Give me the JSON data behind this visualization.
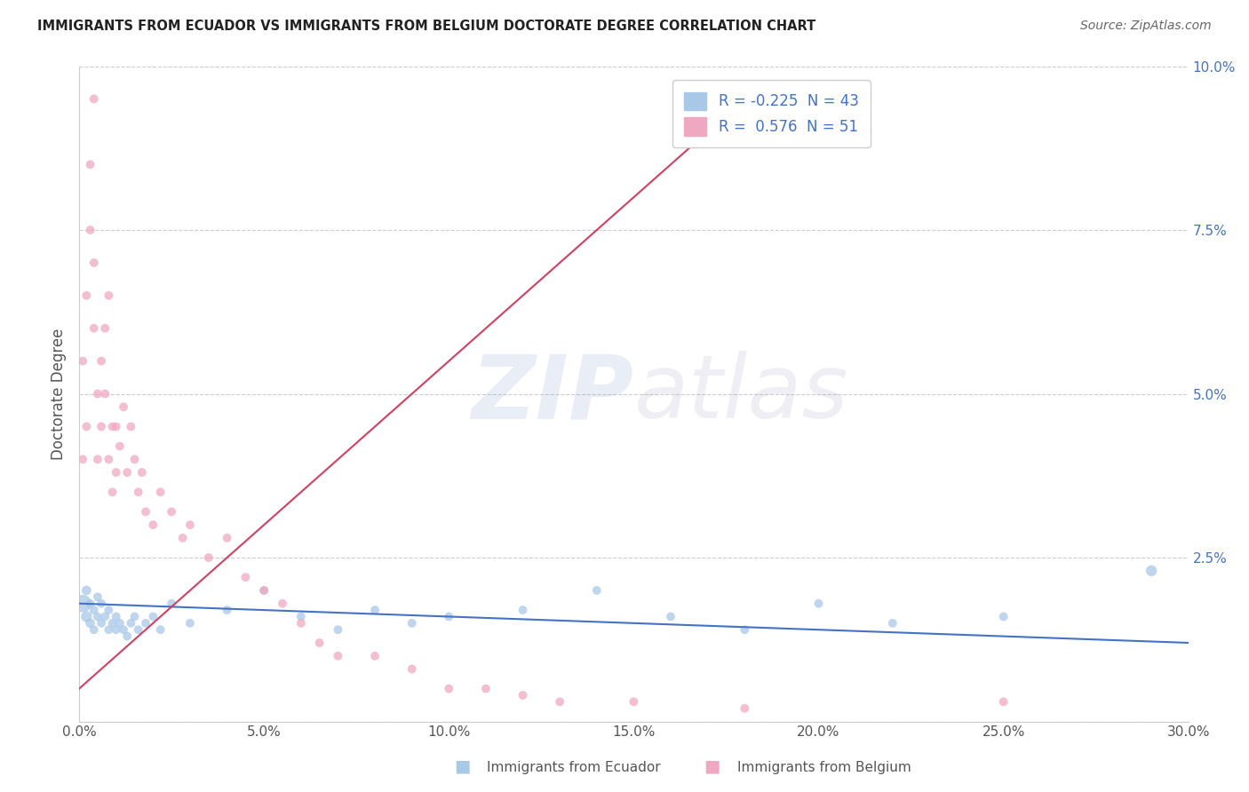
{
  "title": "IMMIGRANTS FROM ECUADOR VS IMMIGRANTS FROM BELGIUM DOCTORATE DEGREE CORRELATION CHART",
  "source": "Source: ZipAtlas.com",
  "ylabel": "Doctorate Degree",
  "xlim": [
    0.0,
    0.3
  ],
  "ylim": [
    0.0,
    0.1
  ],
  "xticks": [
    0.0,
    0.05,
    0.1,
    0.15,
    0.2,
    0.25,
    0.3
  ],
  "yticks": [
    0.0,
    0.025,
    0.05,
    0.075,
    0.1
  ],
  "xtick_labels": [
    "0.0%",
    "5.0%",
    "10.0%",
    "15.0%",
    "20.0%",
    "25.0%",
    "30.0%"
  ],
  "ytick_labels": [
    "",
    "2.5%",
    "5.0%",
    "7.5%",
    "10.0%"
  ],
  "ecuador_color": "#a8c8e8",
  "belgium_color": "#f0a8c0",
  "ecuador_line_color": "#4472c4",
  "belgium_line_color": "#d04060",
  "legend_ecuador_color": "#a8c8e8",
  "legend_belgium_color": "#f0a8c0",
  "ecuador_label": "R = -0.225  N = 43",
  "belgium_label": "R =  0.576  N = 51",
  "watermark_zip_color": "#7090c8",
  "watermark_atlas_color": "#9090b8",
  "ecuador_x": [
    0.001,
    0.002,
    0.002,
    0.003,
    0.003,
    0.004,
    0.004,
    0.005,
    0.005,
    0.006,
    0.006,
    0.007,
    0.008,
    0.008,
    0.009,
    0.01,
    0.01,
    0.011,
    0.012,
    0.013,
    0.014,
    0.015,
    0.016,
    0.018,
    0.02,
    0.022,
    0.025,
    0.03,
    0.04,
    0.05,
    0.06,
    0.07,
    0.08,
    0.09,
    0.1,
    0.12,
    0.14,
    0.16,
    0.18,
    0.2,
    0.22,
    0.25,
    0.29
  ],
  "ecuador_y": [
    0.018,
    0.016,
    0.02,
    0.015,
    0.018,
    0.014,
    0.017,
    0.016,
    0.019,
    0.015,
    0.018,
    0.016,
    0.014,
    0.017,
    0.015,
    0.016,
    0.014,
    0.015,
    0.014,
    0.013,
    0.015,
    0.016,
    0.014,
    0.015,
    0.016,
    0.014,
    0.018,
    0.015,
    0.017,
    0.02,
    0.016,
    0.014,
    0.017,
    0.015,
    0.016,
    0.017,
    0.02,
    0.016,
    0.014,
    0.018,
    0.015,
    0.016,
    0.023
  ],
  "ecuador_sizes": [
    200,
    80,
    60,
    60,
    50,
    50,
    50,
    50,
    50,
    50,
    50,
    50,
    50,
    50,
    50,
    50,
    50,
    50,
    50,
    50,
    50,
    50,
    50,
    50,
    50,
    50,
    50,
    50,
    50,
    50,
    50,
    50,
    50,
    50,
    50,
    50,
    50,
    50,
    50,
    50,
    50,
    50,
    80
  ],
  "belgium_x": [
    0.001,
    0.001,
    0.002,
    0.002,
    0.003,
    0.003,
    0.004,
    0.004,
    0.004,
    0.005,
    0.005,
    0.006,
    0.006,
    0.007,
    0.007,
    0.008,
    0.008,
    0.009,
    0.009,
    0.01,
    0.01,
    0.011,
    0.012,
    0.013,
    0.014,
    0.015,
    0.016,
    0.017,
    0.018,
    0.02,
    0.022,
    0.025,
    0.028,
    0.03,
    0.035,
    0.04,
    0.045,
    0.05,
    0.055,
    0.06,
    0.065,
    0.07,
    0.08,
    0.09,
    0.1,
    0.11,
    0.12,
    0.13,
    0.15,
    0.18,
    0.25
  ],
  "belgium_y": [
    0.055,
    0.04,
    0.065,
    0.045,
    0.075,
    0.085,
    0.095,
    0.06,
    0.07,
    0.04,
    0.05,
    0.055,
    0.045,
    0.06,
    0.05,
    0.065,
    0.04,
    0.035,
    0.045,
    0.045,
    0.038,
    0.042,
    0.048,
    0.038,
    0.045,
    0.04,
    0.035,
    0.038,
    0.032,
    0.03,
    0.035,
    0.032,
    0.028,
    0.03,
    0.025,
    0.028,
    0.022,
    0.02,
    0.018,
    0.015,
    0.012,
    0.01,
    0.01,
    0.008,
    0.005,
    0.005,
    0.004,
    0.003,
    0.003,
    0.002,
    0.003
  ],
  "belgium_sizes": [
    50,
    50,
    50,
    50,
    50,
    50,
    50,
    50,
    50,
    50,
    50,
    50,
    50,
    50,
    50,
    50,
    50,
    50,
    50,
    50,
    50,
    50,
    50,
    50,
    50,
    50,
    50,
    50,
    50,
    50,
    50,
    50,
    50,
    50,
    50,
    50,
    50,
    50,
    50,
    50,
    50,
    50,
    50,
    50,
    50,
    50,
    50,
    50,
    50,
    50,
    50
  ],
  "ecuador_trend_x": [
    0.0,
    0.3
  ],
  "ecuador_trend_y": [
    0.018,
    0.012
  ],
  "belgium_trend_x": [
    0.0,
    0.18
  ],
  "belgium_trend_y": [
    0.005,
    0.095
  ]
}
